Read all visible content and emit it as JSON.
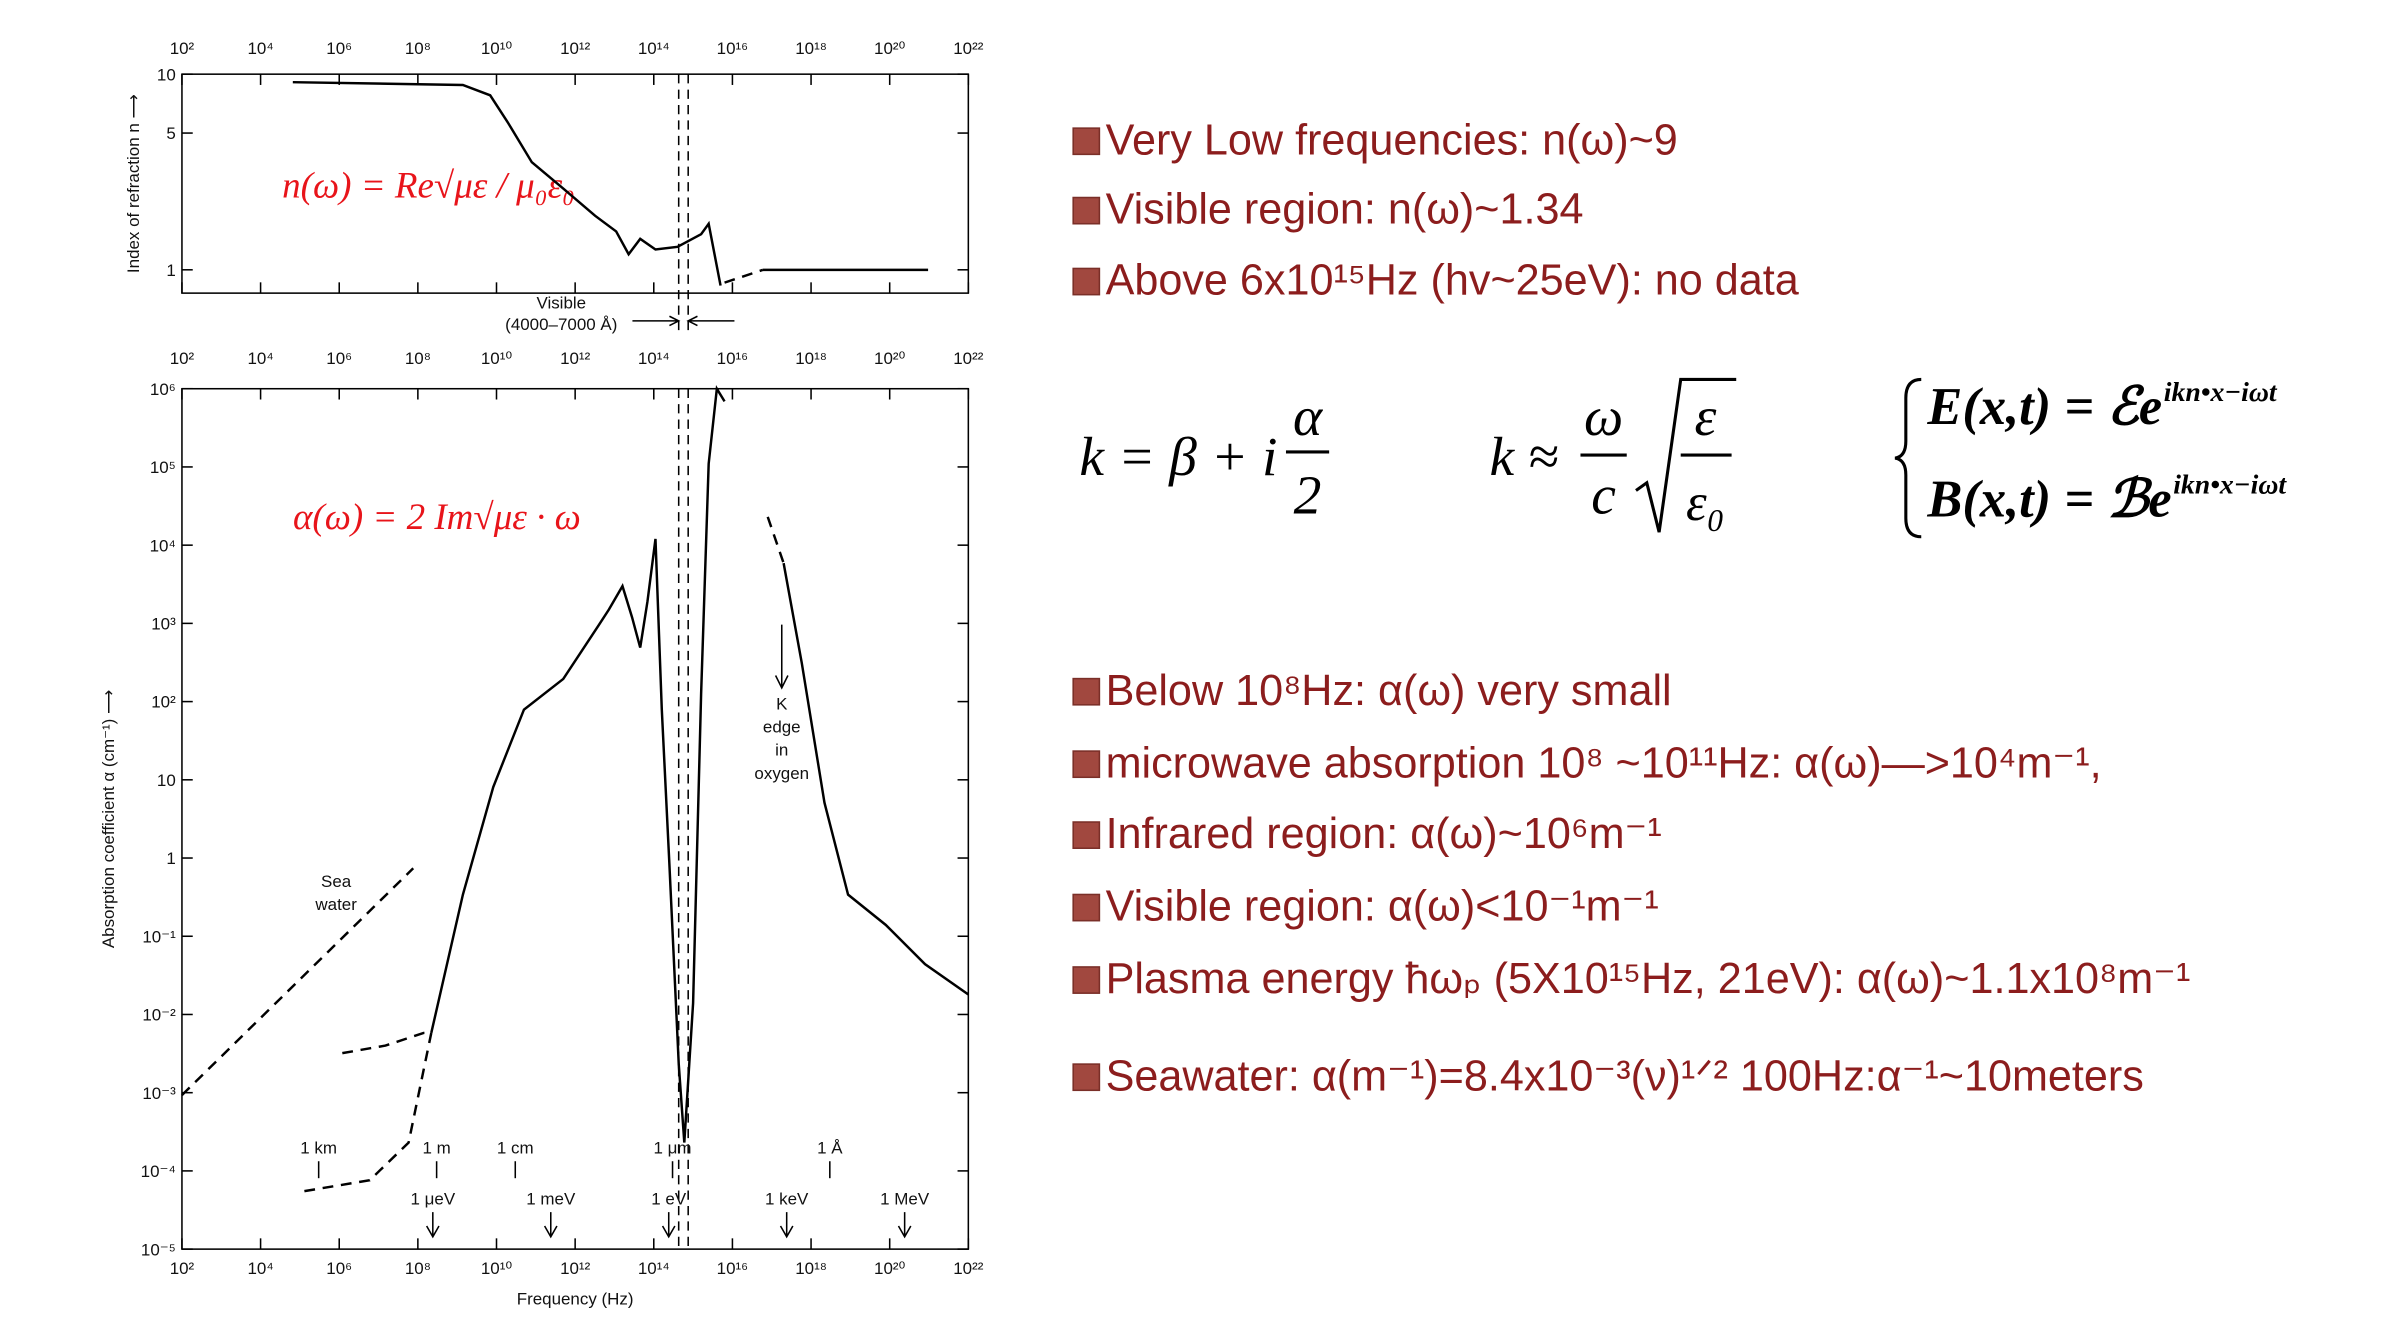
{
  "slide": {
    "bullets_top": [
      "Very Low frequencies: n(ω)~9",
      "Visible region: n(ω)~1.34",
      "Above 6x10¹⁵Hz (hv~25eV): no data"
    ],
    "formulas": {
      "k1": {
        "lhs": "k = β + i",
        "num": "α",
        "den": "2"
      },
      "k2": {
        "lhs": "k ≈",
        "num": "ω",
        "den": "c",
        "root_num": "ε",
        "root_den": "ε₀"
      },
      "fields": [
        {
          "base": "E(x,t) = ℰe",
          "exp": "ikn•x−iωt"
        },
        {
          "base": "B(x,t) = ℬe",
          "exp": "ikn•x−iωt"
        }
      ]
    },
    "bullets_bottom": [
      "Below 10⁸Hz: α(ω) very small",
      "microwave absorption 10⁸ ~10¹¹Hz:  α(ω)—>10⁴m⁻¹,",
      "Infrared region: α(ω)~10⁶m⁻¹",
      "Visible region: α(ω)<10⁻¹m⁻¹",
      "Plasma energy ħωₚ (5X10¹⁵Hz, 21eV): α(ω)~1.1x10⁸m⁻¹",
      "Seawater: α(m⁻¹)=8.4x10⁻³(ν)¹ᐟ² 100Hz:α⁻¹~10meters"
    ]
  },
  "chart_data": [
    {
      "type": "line",
      "y_label": "Index of refraction n ⟶",
      "formula": "n(ω) = Re√με / μ₀ε₀",
      "log_x": true,
      "log_y": true,
      "xlim": [
        100.0,
        1e+22
      ],
      "ylim": [
        0.76,
        10
      ],
      "xticks": [
        {
          "value": 100.0,
          "label": "10²"
        },
        {
          "value": 10000.0,
          "label": "10⁴"
        },
        {
          "value": 1000000.0,
          "label": "10⁶"
        },
        {
          "value": 100000000.0,
          "label": "10⁸"
        },
        {
          "value": 10000000000.0,
          "label": "10¹⁰"
        },
        {
          "value": 1000000000000.0,
          "label": "10¹²"
        },
        {
          "value": 100000000000000.0,
          "label": "10¹⁴"
        },
        {
          "value": 1e+16,
          "label": "10¹⁶"
        },
        {
          "value": 1e+18,
          "label": "10¹⁸"
        },
        {
          "value": 1e+20,
          "label": "10²⁰"
        },
        {
          "value": 1e+22,
          "label": "10²²"
        }
      ],
      "yticks": [
        1,
        5,
        10
      ],
      "visible_band": [
        430000000000000.0,
        750000000000000.0
      ],
      "visible_label": [
        "Visible",
        "(4000–7000 Å)"
      ],
      "series": [
        {
          "color": "#000",
          "dashed": false,
          "x": [
            66000.0,
            1400000000.0,
            6900000000.0,
            20000000000.0,
            79000000000.0,
            500000000000.0,
            3200000000000.0,
            11000000000000.0,
            23000000000000.0,
            45000000000000.0,
            110000000000000.0,
            400000000000000.0,
            1600000000000000.0,
            2500000000000000.0,
            5000000000000000.0,
            null,
            6e+16,
            9.5e+20
          ],
          "values": [
            9.1,
            8.8,
            7.8,
            5.6,
            3.55,
            2.6,
            1.89,
            1.57,
            1.2,
            1.44,
            1.27,
            1.31,
            1.52,
            1.72,
            0.83,
            null,
            1.0,
            1.0
          ]
        },
        {
          "color": "#000",
          "dashed": true,
          "x": [
            6300000000000000.0,
            6e+16
          ],
          "values": [
            0.86,
            1.0
          ]
        }
      ]
    },
    {
      "type": "line",
      "x_label": "Frequency (Hz)",
      "y_label": "Absorption coefficient α (cm⁻¹) ⟶",
      "formula": "α(ω) = 2 Im√με · ω",
      "log_x": true,
      "log_y": true,
      "xlim": [
        100.0,
        1e+22
      ],
      "ylim": [
        1e-05,
        1000000.0
      ],
      "xticks": [
        {
          "value": 100.0,
          "label": "10²"
        },
        {
          "value": 10000.0,
          "label": "10⁴"
        },
        {
          "value": 1000000.0,
          "label": "10⁶"
        },
        {
          "value": 100000000.0,
          "label": "10⁸"
        },
        {
          "value": 10000000000.0,
          "label": "10¹⁰"
        },
        {
          "value": 1000000000000.0,
          "label": "10¹²"
        },
        {
          "value": 100000000000000.0,
          "label": "10¹⁴"
        },
        {
          "value": 1e+16,
          "label": "10¹⁶"
        },
        {
          "value": 1e+18,
          "label": "10¹⁸"
        },
        {
          "value": 1e+20,
          "label": "10²⁰"
        },
        {
          "value": 1e+22,
          "label": "10²²"
        }
      ],
      "yticks": [
        {
          "value": 1e-05,
          "label": "10⁻⁵"
        },
        {
          "value": 0.0001,
          "label": "10⁻⁴"
        },
        {
          "value": 0.001,
          "label": "10⁻³"
        },
        {
          "value": 0.01,
          "label": "10⁻²"
        },
        {
          "value": 0.1,
          "label": "10⁻¹"
        },
        1,
        10,
        {
          "value": 100.0,
          "label": "10²"
        },
        {
          "value": 1000.0,
          "label": "10³"
        },
        {
          "value": 10000.0,
          "label": "10⁴"
        },
        {
          "value": 100000.0,
          "label": "10⁵"
        },
        {
          "value": 1000000.0,
          "label": "10⁶"
        }
      ],
      "visible_band": [
        430000000000000.0,
        750000000000000.0
      ],
      "sea_label": [
        "Sea",
        "water"
      ],
      "k_edge_label": [
        "K",
        "edge",
        "in",
        "oxygen"
      ],
      "wavelength_marks": [
        {
          "text": "1 km",
          "x": 300000.0
        },
        {
          "text": "1 m",
          "x": 300000000.0
        },
        {
          "text": "1 cm",
          "x": 30000000000.0
        },
        {
          "text": "1 μm",
          "x": 300000000000000.0
        },
        {
          "text": "1 Å",
          "x": 3e+18
        }
      ],
      "energy_marks": [
        {
          "text": "1 μeV",
          "x": 240000000.0
        },
        {
          "text": "1 meV",
          "x": 240000000000.0
        },
        {
          "text": "1 eV",
          "x": 240000000000000.0
        },
        {
          "text": "1 keV",
          "x": 2.4e+17
        },
        {
          "text": "1 MeV",
          "x": 2.4e+20
        }
      ],
      "series": [
        {
          "color": "#000",
          "dashed": false,
          "x": [
            220000000.0,
            1400000000.0,
            8300000000.0,
            50000000000.0,
            500000000000.0,
            4000000000000.0,
            7200000000000.0,
            16000000000000.0,
            28000000000000.0,
            45000000000000.0,
            69000000000000.0,
            110000000000000.0,
            160000000000000.0,
            250000000000000.0,
            430000000000000.0,
            600000000000000.0,
            1000000000000000.0,
            1600000000000000.0,
            2500000000000000.0,
            4000000000000000.0,
            6300000000000000.0
          ],
          "values": [
            0.0058,
            0.34,
            8.1,
            79,
            195,
            955,
            1500,
            3000,
            1200,
            490,
            1900,
            12000.0,
            79,
            0.85,
            0.0023,
            0.00023,
            0.014,
            126,
            110000.0,
            1000000.0,
            690000.0
          ]
        },
        {
          "color": "#000",
          "dashed": false,
          "x": [
            2e+17,
            5.8e+17,
            2.2e+18,
            8.7e+18,
            7.9e+19,
            7.9e+20,
            1e+22
          ],
          "values": [
            5900,
            310,
            5.1,
            0.34,
            0.14,
            0.044,
            0.018
          ]
        },
        {
          "color": "#000",
          "dashed": true,
          "x": [
            7.9e+16,
            2e+17
          ],
          "values": [
            23000.0,
            5900
          ]
        },
        {
          "color": "#000",
          "dashed": true,
          "x": [
            1200000.0,
            15000000.0,
            140000000.0,
            220000000.0
          ],
          "values": [
            0.0032,
            0.004,
            0.0058,
            0.0058
          ]
        },
        {
          "color": "#000",
          "dashed": true,
          "x": [
            130000.0,
            6000000.0,
            58000000.0,
            220000000.0
          ],
          "values": [
            5.5e-05,
            7.6e-05,
            0.00023,
            0.0058
          ]
        },
        {
          "color": "#000",
          "dashed": true,
          "x": [
            100.0,
            76000000.0
          ],
          "values": [
            0.00093,
            0.74
          ]
        }
      ]
    }
  ]
}
